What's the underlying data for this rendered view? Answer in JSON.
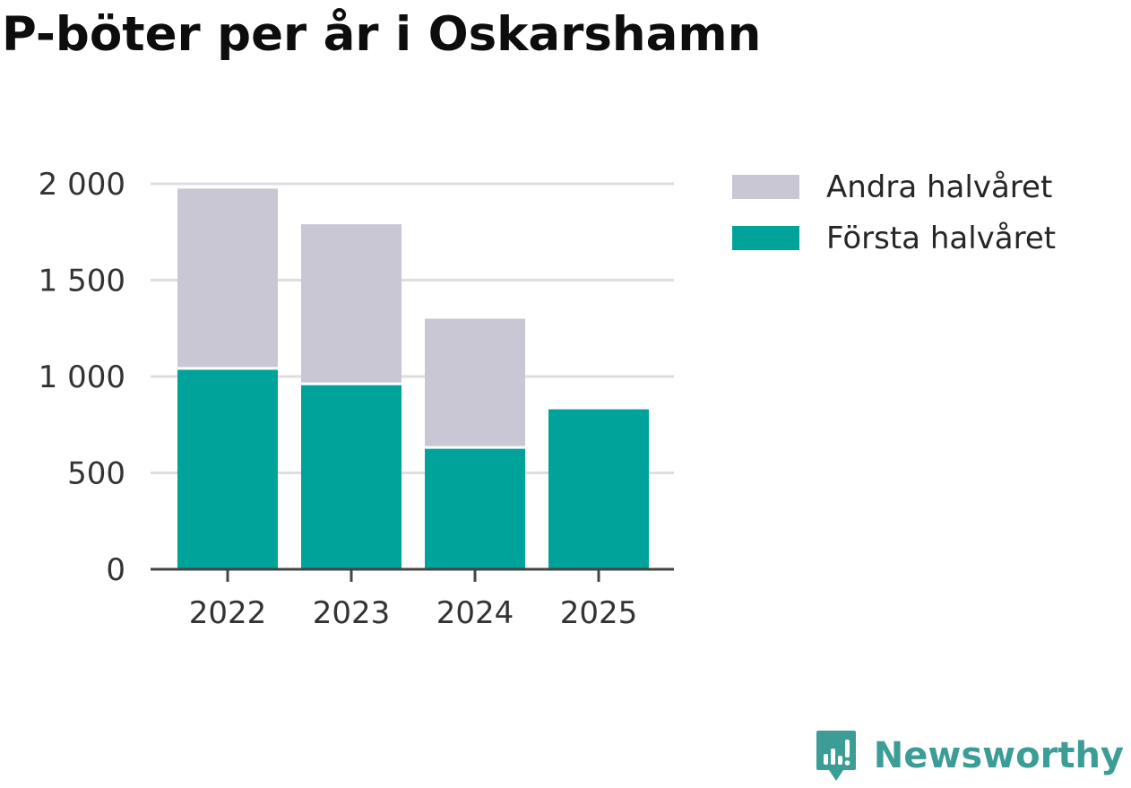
{
  "chart_data": {
    "type": "bar",
    "stacked": true,
    "title": "P-böter per år i Oskarshamn",
    "categories": [
      "2022",
      "2023",
      "2024",
      "2025"
    ],
    "series": [
      {
        "name": "Första halvåret",
        "color": "#00a39a",
        "values": [
          1035,
          955,
          625,
          830
        ]
      },
      {
        "name": "Andra halvåret",
        "color": "#c8c7d3",
        "values": [
          940,
          835,
          675,
          0
        ]
      }
    ],
    "y_ticks": [
      0,
      500,
      1000,
      1500,
      2000
    ],
    "y_tick_labels": [
      "0",
      "500",
      "1 000",
      "1 500",
      "2 000"
    ],
    "ylim": [
      0,
      2000
    ],
    "xlabel": "",
    "ylabel": "",
    "grid": true,
    "legend_position": "right"
  },
  "legend": {
    "items": [
      {
        "label": "Andra halvåret",
        "color": "#c8c7d3"
      },
      {
        "label": "Första halvåret",
        "color": "#00a39a"
      }
    ]
  },
  "brand": {
    "name": "Newsworthy",
    "color": "#3c9d97",
    "icon": "newsworthy-logo-icon"
  }
}
